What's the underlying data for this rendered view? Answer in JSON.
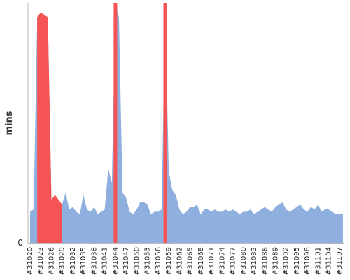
{
  "chart_data": {
    "type": "area",
    "ylabel": "mins",
    "ylim": [
      0,
      100
    ],
    "y_ticks": [
      "0"
    ],
    "grid": false,
    "legend": "none",
    "colors": {
      "pass": "#8fb0de",
      "fail": "#f55454"
    },
    "x": [
      "#31020",
      "#31021",
      "#31022",
      "#31023",
      "#31024",
      "#31025",
      "#31026",
      "#31027",
      "#31028",
      "#31029",
      "#31030",
      "#31031",
      "#31032",
      "#31033",
      "#31034",
      "#31035",
      "#31036",
      "#31037",
      "#31038",
      "#31039",
      "#31040",
      "#31041",
      "#31042",
      "#31043",
      "#31044",
      "#31045",
      "#31046",
      "#31047",
      "#31048",
      "#31049",
      "#31050",
      "#31051",
      "#31052",
      "#31053",
      "#31054",
      "#31055",
      "#31056",
      "#31057",
      "#31058",
      "#31059",
      "#31060",
      "#31061",
      "#31062",
      "#31063",
      "#31064",
      "#31065",
      "#31066",
      "#31067",
      "#31068",
      "#31069",
      "#31070",
      "#31071",
      "#31072",
      "#31073",
      "#31074",
      "#31075",
      "#31076",
      "#31077",
      "#31078",
      "#31079",
      "#31080",
      "#31081",
      "#31082",
      "#31083",
      "#31084",
      "#31085",
      "#31086",
      "#31087",
      "#31088",
      "#31089",
      "#31090",
      "#31091",
      "#31092",
      "#31093",
      "#31094",
      "#31095",
      "#31096",
      "#31097",
      "#31098",
      "#31099",
      "#31100",
      "#31101",
      "#31102",
      "#31103",
      "#31104",
      "#31105",
      "#31106",
      "#31107",
      "#31108"
    ],
    "tick_labels": [
      "#31020",
      "#31023",
      "#31026",
      "#31029",
      "#31032",
      "#31035",
      "#31038",
      "#31041",
      "#31044",
      "#31047",
      "#31050",
      "#31053",
      "#31056",
      "#31059",
      "#31062",
      "#31065",
      "#31068",
      "#31071",
      "#31074",
      "#31077",
      "#31080",
      "#31083",
      "#31086",
      "#31089",
      "#31092",
      "#31095",
      "#31098",
      "#31101",
      "#31104",
      "#31107"
    ],
    "values": [
      13,
      14,
      94,
      96,
      95,
      94,
      18,
      20,
      18,
      16,
      21,
      14,
      15,
      13,
      12,
      20,
      14,
      13,
      15,
      12,
      13,
      14,
      31,
      25,
      100,
      94,
      21,
      19,
      13,
      12,
      14,
      17,
      17,
      16,
      12,
      13,
      13,
      14,
      100,
      30,
      22,
      20,
      14,
      12,
      13,
      15,
      15,
      16,
      12,
      14,
      14,
      13,
      14,
      13,
      13,
      14,
      13,
      14,
      13,
      12,
      13,
      13,
      14,
      12,
      13,
      14,
      15,
      14,
      13,
      15,
      16,
      17,
      14,
      13,
      14,
      15,
      16,
      14,
      13,
      15,
      14,
      16,
      13,
      14,
      14,
      13,
      12,
      12,
      12
    ],
    "status": [
      "pass",
      "pass",
      "fail",
      "fail",
      "fail",
      "fail",
      "fail",
      "fail",
      "fail",
      "fail",
      "pass",
      "pass",
      "pass",
      "pass",
      "pass",
      "pass",
      "pass",
      "pass",
      "pass",
      "pass",
      "pass",
      "pass",
      "pass",
      "pass",
      "fail",
      "pass",
      "pass",
      "pass",
      "pass",
      "pass",
      "pass",
      "pass",
      "pass",
      "pass",
      "pass",
      "pass",
      "pass",
      "pass",
      "fail",
      "pass",
      "pass",
      "pass",
      "pass",
      "pass",
      "pass",
      "pass",
      "pass",
      "pass",
      "pass",
      "pass",
      "pass",
      "pass",
      "pass",
      "pass",
      "pass",
      "pass",
      "pass",
      "pass",
      "pass",
      "pass",
      "pass",
      "pass",
      "pass",
      "pass",
      "pass",
      "pass",
      "pass",
      "pass",
      "pass",
      "pass",
      "pass",
      "pass",
      "pass",
      "pass",
      "pass",
      "pass",
      "pass",
      "pass",
      "pass",
      "pass",
      "pass",
      "pass",
      "pass",
      "pass",
      "pass",
      "pass",
      "pass",
      "pass",
      "pass"
    ]
  }
}
